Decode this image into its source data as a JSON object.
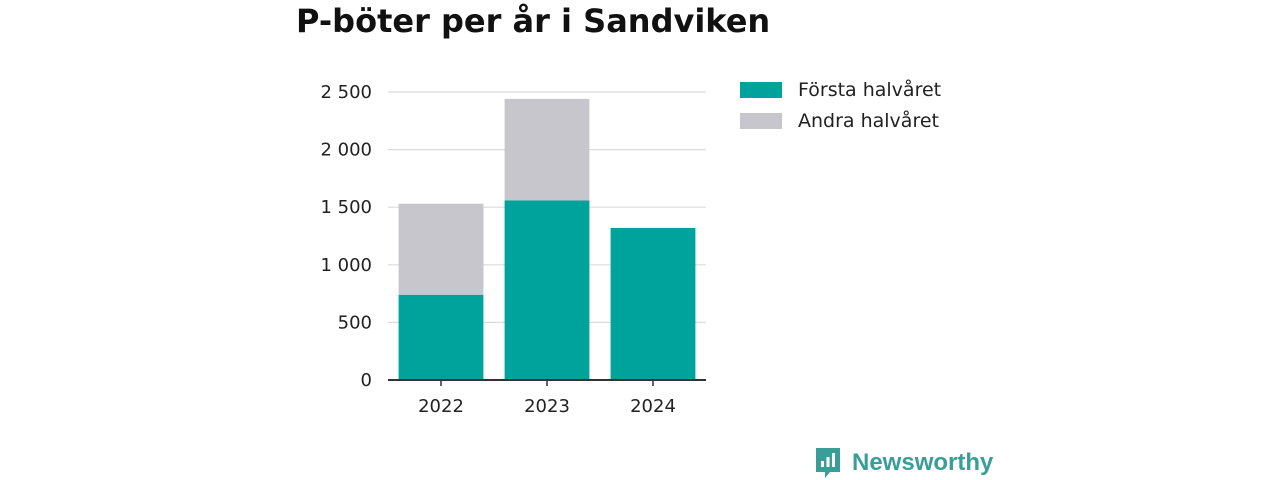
{
  "chart_data": {
    "type": "bar",
    "stacked": true,
    "title": "P-böter per år i Sandviken",
    "categories": [
      "2022",
      "2023",
      "2024"
    ],
    "series": [
      {
        "name": "Första halvåret",
        "color": "#00a39b",
        "values": [
          740,
          1560,
          1320
        ]
      },
      {
        "name": "Andra halvåret",
        "color": "#c6c6cc",
        "values": [
          790,
          880,
          0
        ]
      }
    ],
    "yticks": [
      0,
      500,
      1000,
      1500,
      2000,
      2500
    ],
    "ytick_labels": [
      "0",
      "500",
      "1 000",
      "1 500",
      "2 000",
      "2 500"
    ],
    "ylim": [
      0,
      2500
    ],
    "grid": true,
    "legend_position": "top-right"
  },
  "brand": {
    "name": "Newsworthy",
    "logo_icon": "newsworthy-logo-icon",
    "color": "#3a9e98"
  }
}
